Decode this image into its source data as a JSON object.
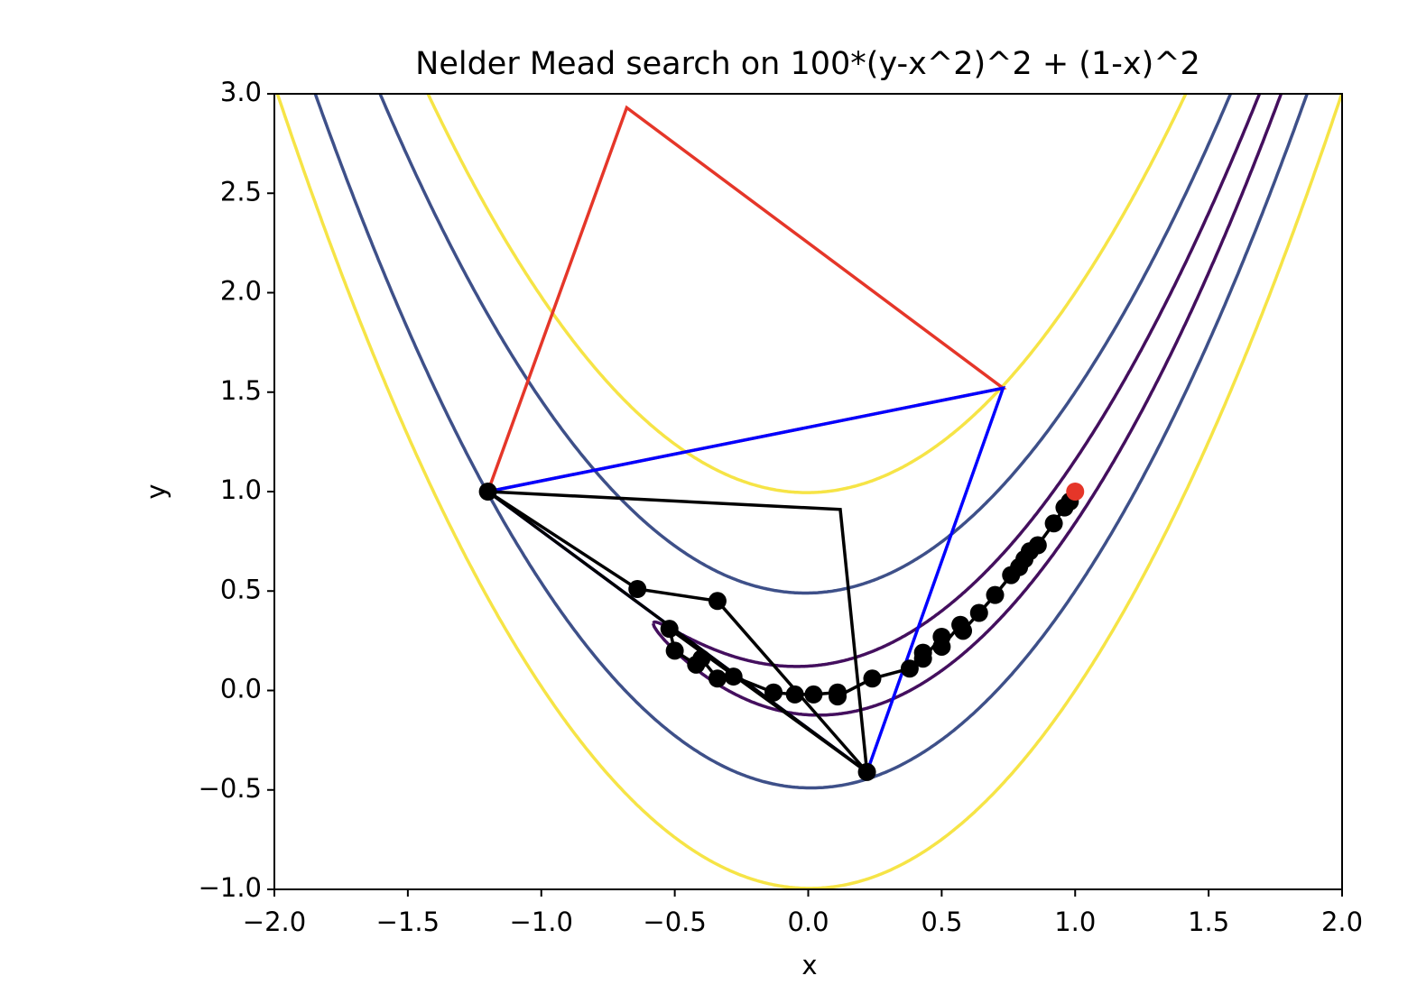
{
  "chart_data": {
    "type": "line",
    "title": "Nelder Mead search on 100*(y-x^2)^2 + (1-x)^2",
    "xlabel": "x",
    "ylabel": "y",
    "xlim": [
      -2,
      2
    ],
    "ylim": [
      -1,
      3
    ],
    "xticks": [
      {
        "value": -2,
        "label": "−2.0"
      },
      {
        "value": -1.5,
        "label": "−1.5"
      },
      {
        "value": -1,
        "label": "−1.0"
      },
      {
        "value": -0.5,
        "label": "−0.5"
      },
      {
        "value": 0,
        "label": "0.0"
      },
      0.5,
      {
        "value": 1,
        "label": "1.0"
      },
      1.5,
      {
        "value": 2,
        "label": "2.0"
      }
    ],
    "yticks": [
      {
        "value": -1,
        "label": "−1.0"
      },
      {
        "value": -0.5,
        "label": "−0.5"
      },
      {
        "value": 0,
        "label": "0.0"
      },
      0.5,
      {
        "value": 1,
        "label": "1.0"
      },
      1.5,
      {
        "value": 2,
        "label": "2.0"
      },
      2.5,
      {
        "value": 3,
        "label": "3.0"
      }
    ],
    "contours": {
      "levels": [
        2.5,
        25,
        100
      ],
      "colors": [
        "#440f5e",
        "#3e5089",
        "#f6e446"
      ]
    },
    "series": [
      {
        "color": "#e53629",
        "marker": false,
        "x": [
          -1.2,
          -0.68,
          0.73,
          -1.2
        ],
        "y": [
          1.0,
          2.93,
          1.52,
          1.0
        ]
      },
      {
        "color": "#0000ff",
        "marker": false,
        "x": [
          -1.2,
          0.73,
          0.22,
          -1.2
        ],
        "y": [
          1.0,
          1.52,
          -0.41,
          1.0
        ]
      },
      {
        "color": "#000000",
        "marker": false,
        "x": [
          -1.2,
          0.12,
          0.22,
          -1.2
        ],
        "y": [
          1.0,
          0.91,
          -0.41,
          1.0
        ]
      },
      {
        "color": "#000000",
        "marker": true,
        "x": [
          -1.2,
          -0.64,
          -0.34,
          0.22,
          -0.52,
          -0.5,
          -0.42,
          -0.4,
          -0.34,
          -0.28,
          -0.13,
          -0.05,
          0.02,
          0.11,
          0.11,
          0.24,
          0.38,
          0.43,
          0.43,
          0.5,
          0.5,
          0.57,
          0.58,
          0.64,
          0.7,
          0.76,
          0.79,
          0.81,
          0.83,
          0.86,
          0.92,
          0.96,
          0.98
        ],
        "y": [
          1.0,
          0.51,
          0.45,
          -0.41,
          0.31,
          0.2,
          0.13,
          0.16,
          0.06,
          0.07,
          -0.01,
          -0.02,
          -0.02,
          -0.01,
          -0.03,
          0.06,
          0.11,
          0.19,
          0.16,
          0.27,
          0.22,
          0.33,
          0.3,
          0.39,
          0.48,
          0.58,
          0.62,
          0.66,
          0.7,
          0.73,
          0.84,
          0.92,
          0.95
        ]
      },
      {
        "color": "#e53629",
        "marker": true,
        "x": [
          1.0
        ],
        "y": [
          1.0
        ]
      }
    ]
  }
}
